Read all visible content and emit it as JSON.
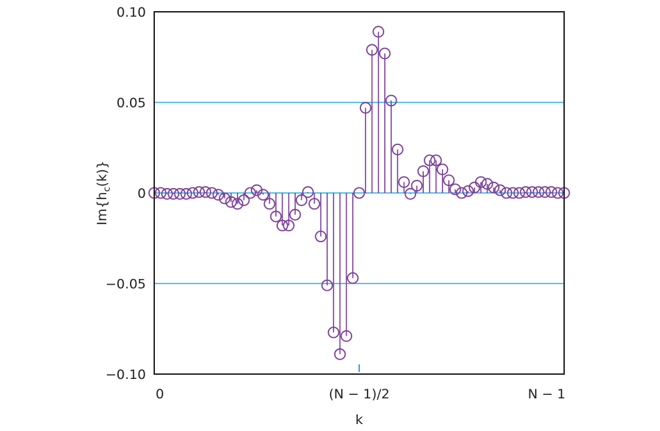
{
  "chart_data": {
    "type": "stem",
    "title": "",
    "xlabel": "k",
    "ylabel": "Im{h_c(k)}",
    "ylabel_parts": {
      "main": "Im{h",
      "sub": "c",
      "tail": "(k)}"
    },
    "ylim": [
      -0.1,
      0.1
    ],
    "yticks": [
      -0.1,
      -0.05,
      0,
      0.05,
      0.1
    ],
    "ytick_labels": [
      "−0.10",
      "−0.05",
      "0",
      "0.05",
      "0.10"
    ],
    "xtick_labels": [
      {
        "position": "start",
        "label": "0"
      },
      {
        "position": "center",
        "label": "(N − 1)/2"
      },
      {
        "position": "end",
        "label": "N − 1"
      }
    ],
    "grid": {
      "horizontal_lines_at": [
        0.05,
        0,
        -0.05
      ],
      "color": "#29abe2"
    },
    "colors": {
      "stem": "#7b3f98",
      "grid": "#29abe2",
      "axis": "#231f20",
      "center_tick": "#29abe2"
    },
    "n_points": 65,
    "x": [
      0,
      1,
      2,
      3,
      4,
      5,
      6,
      7,
      8,
      9,
      10,
      11,
      12,
      13,
      14,
      15,
      16,
      17,
      18,
      19,
      20,
      21,
      22,
      23,
      24,
      25,
      26,
      27,
      28,
      29,
      30,
      31,
      32,
      33,
      34,
      35,
      36,
      37,
      38,
      39,
      40,
      41,
      42,
      43,
      44,
      45,
      46,
      47,
      48,
      49,
      50,
      51,
      52,
      53,
      54,
      55,
      56,
      57,
      58,
      59,
      60,
      61,
      62,
      63,
      64
    ],
    "values": [
      0.0,
      0.0,
      -0.0005,
      -0.0005,
      -0.0005,
      -0.0005,
      0.0,
      0.0005,
      0.0005,
      0.0,
      -0.001,
      -0.003,
      -0.005,
      -0.006,
      -0.004,
      0.0,
      0.0015,
      -0.001,
      -0.006,
      -0.013,
      -0.018,
      -0.018,
      -0.012,
      -0.004,
      0.0005,
      -0.006,
      -0.024,
      -0.051,
      -0.077,
      -0.089,
      -0.079,
      -0.047,
      0.0,
      0.047,
      0.079,
      0.089,
      0.077,
      0.051,
      0.024,
      0.006,
      -0.0005,
      0.004,
      0.012,
      0.018,
      0.018,
      0.013,
      0.007,
      0.002,
      0.0,
      0.001,
      0.003,
      0.006,
      0.005,
      0.003,
      0.0015,
      0.0,
      0.0,
      0.0,
      0.0005,
      0.0005,
      0.0005,
      0.0005,
      0.0005,
      0.0,
      0.0
    ]
  }
}
